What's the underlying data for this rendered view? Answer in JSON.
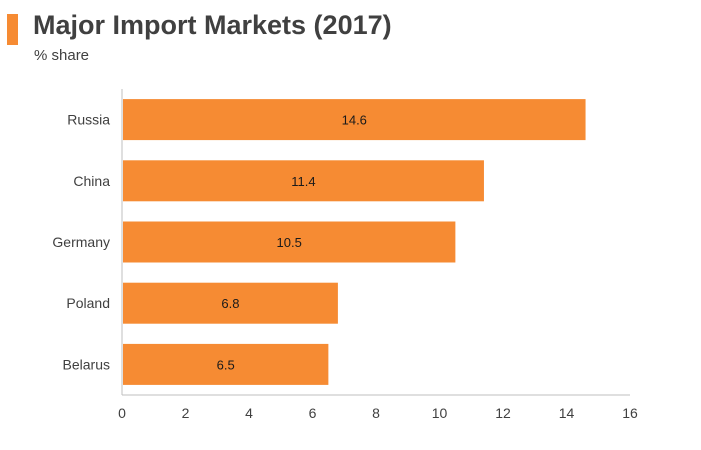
{
  "header": {
    "title": "Major Import Markets (2017)",
    "subtitle": "% share",
    "accent_color": "#f68b33"
  },
  "chart_data": {
    "type": "bar",
    "orientation": "horizontal",
    "title": "Major Import Markets (2017)",
    "subtitle": "% share",
    "categories": [
      "Russia",
      "China",
      "Germany",
      "Poland",
      "Belarus"
    ],
    "values": [
      14.6,
      11.4,
      10.5,
      6.8,
      6.5
    ],
    "data_labels": [
      "14.6",
      "11.4",
      "10.5",
      "6.8",
      "6.5"
    ],
    "xlim": [
      0,
      16
    ],
    "x_ticks": [
      0,
      2,
      4,
      6,
      8,
      10,
      12,
      14,
      16
    ],
    "bar_color": "#f68b33",
    "axis_color": "#bfbfbf",
    "grid": false,
    "legend": "none"
  }
}
